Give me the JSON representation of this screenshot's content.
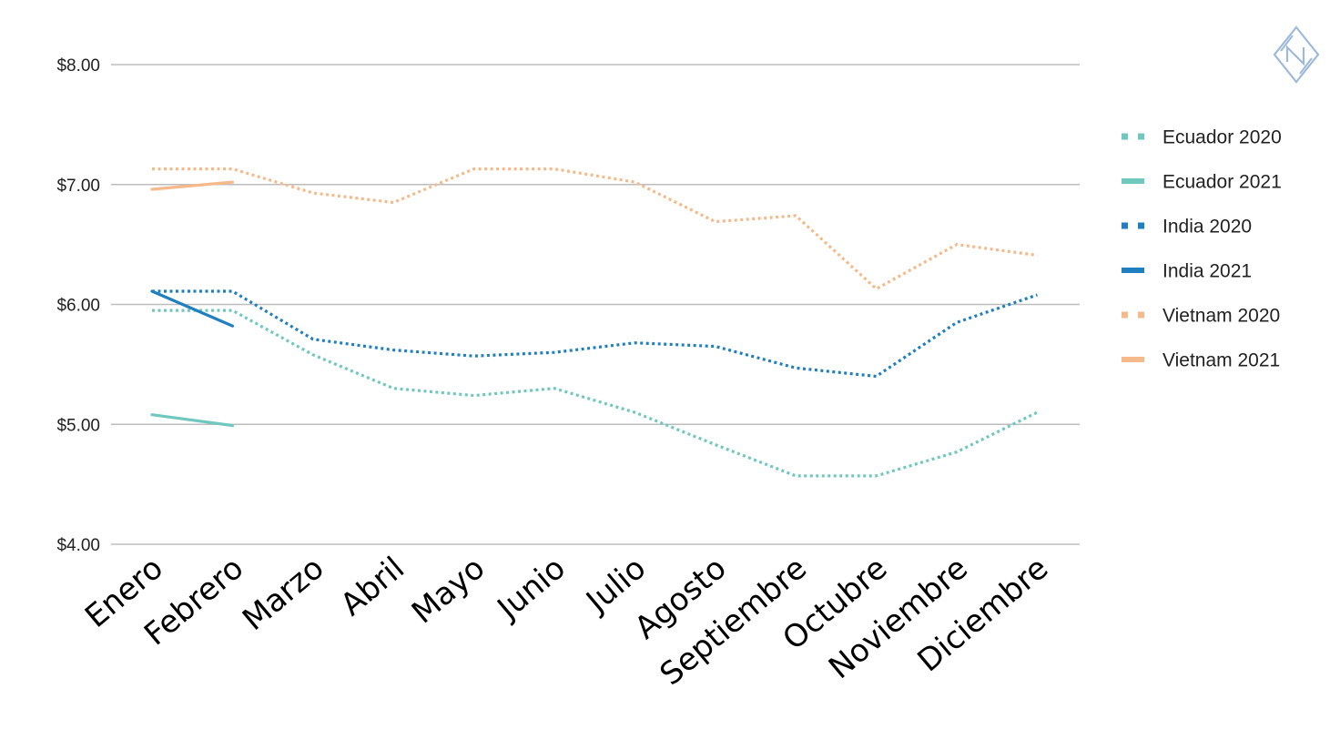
{
  "chart_data": {
    "type": "line",
    "categories": [
      "Enero",
      "Febrero",
      "Marzo",
      "Abril",
      "Mayo",
      "Junio",
      "Julio",
      "Agosto",
      "Septiembre",
      "Octubre",
      "Noviembre",
      "Diciembre"
    ],
    "ylim": [
      4,
      8
    ],
    "yticks": [
      4,
      5,
      6,
      7,
      8
    ],
    "ytick_labels": [
      "$4.00",
      "$5.00",
      "$6.00",
      "$7.00",
      "$8.00"
    ],
    "grid": true,
    "legend_position": "right",
    "series": [
      {
        "name": "Ecuador 2020",
        "color": "#6fc8be",
        "style": "dotted",
        "values": [
          5.95,
          5.95,
          5.58,
          5.3,
          5.24,
          5.3,
          5.1,
          4.83,
          4.57,
          4.57,
          4.77,
          5.1
        ]
      },
      {
        "name": "Ecuador 2021",
        "color": "#6fc8be",
        "style": "solid",
        "values": [
          5.08,
          4.99,
          null,
          null,
          null,
          null,
          null,
          null,
          null,
          null,
          null,
          null
        ]
      },
      {
        "name": "India 2020",
        "color": "#1f7fbf",
        "style": "dotted",
        "values": [
          6.11,
          6.11,
          5.71,
          5.62,
          5.57,
          5.6,
          5.68,
          5.65,
          5.47,
          5.4,
          5.85,
          6.08
        ]
      },
      {
        "name": "India 2021",
        "color": "#1f7fbf",
        "style": "solid",
        "values": [
          6.11,
          5.82,
          null,
          null,
          null,
          null,
          null,
          null,
          null,
          null,
          null,
          null
        ]
      },
      {
        "name": "Vietnam 2020",
        "color": "#f6b98a",
        "style": "dotted",
        "values": [
          7.13,
          7.13,
          6.93,
          6.85,
          7.13,
          7.13,
          7.02,
          6.69,
          6.74,
          6.13,
          6.5,
          6.41
        ]
      },
      {
        "name": "Vietnam 2021",
        "color": "#f6b98a",
        "style": "solid",
        "values": [
          6.96,
          7.02,
          null,
          null,
          null,
          null,
          null,
          null,
          null,
          null,
          null,
          null
        ]
      }
    ]
  }
}
